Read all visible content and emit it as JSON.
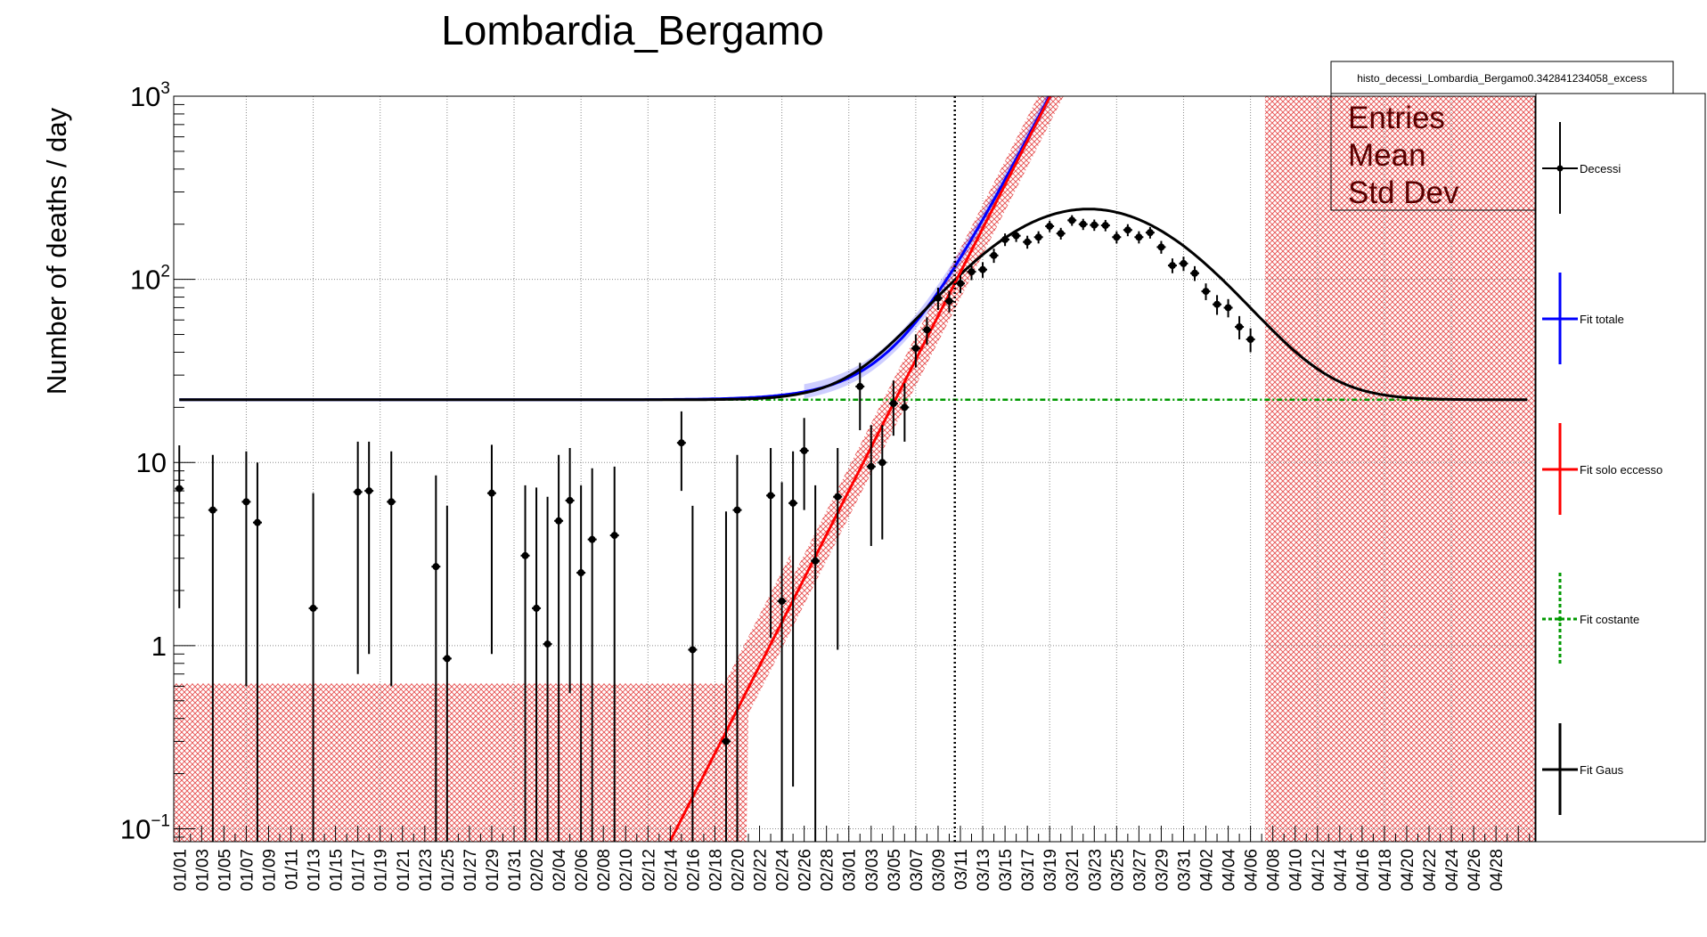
{
  "chart_data": {
    "type": "scatter",
    "title": "Lombardia_Bergamo",
    "ylabel": "Number of deaths / day",
    "xlabel": "",
    "yscale": "log",
    "ylim": [
      0.085,
      1000
    ],
    "xlim_days": [
      0,
      121
    ],
    "grid": true,
    "y_ticks": [
      {
        "value": 0.1,
        "base": "10",
        "exp": "−1"
      },
      {
        "value": 1,
        "base": "1",
        "exp": ""
      },
      {
        "value": 10,
        "base": "10",
        "exp": ""
      },
      {
        "value": 100,
        "base": "10",
        "exp": "2"
      },
      {
        "value": 1000,
        "base": "10",
        "exp": "3"
      }
    ],
    "x_tick_labels": [
      "01/01",
      "01/03",
      "01/05",
      "01/07",
      "01/09",
      "01/11",
      "01/13",
      "01/15",
      "01/17",
      "01/19",
      "01/21",
      "01/23",
      "01/25",
      "01/27",
      "01/29",
      "01/31",
      "02/02",
      "02/04",
      "02/06",
      "02/08",
      "02/10",
      "02/12",
      "02/14",
      "02/16",
      "02/18",
      "02/20",
      "02/22",
      "02/24",
      "02/26",
      "02/28",
      "03/01",
      "03/03",
      "03/05",
      "03/07",
      "03/09",
      "03/11",
      "03/13",
      "03/15",
      "03/17",
      "03/19",
      "03/21",
      "03/23",
      "03/25",
      "03/27",
      "03/29",
      "03/31",
      "04/02",
      "04/04",
      "04/06",
      "04/08",
      "04/10",
      "04/12",
      "04/14",
      "04/16",
      "04/18",
      "04/20",
      "04/22",
      "04/24",
      "04/26",
      "04/28"
    ],
    "vertical_marker_day": 69.5,
    "stats_box": {
      "header": "histo_decessi_Lombardia_Bergamo0.342841234058_excess",
      "rows": [
        "Entries",
        "Mean",
        "Std Dev"
      ]
    },
    "series": [
      {
        "name": "Decessi",
        "kind": "points",
        "color": "#000000",
        "points": [
          [
            0,
            7.2,
            1.6,
            12.4
          ],
          [
            3,
            5.5,
            0.085,
            11
          ],
          [
            6,
            6.1,
            0.6,
            11.5
          ],
          [
            7,
            4.7,
            0.085,
            10
          ],
          [
            12,
            1.6,
            0.085,
            6.8
          ],
          [
            16,
            6.9,
            0.7,
            13
          ],
          [
            17,
            7,
            0.9,
            13
          ],
          [
            19,
            6.1,
            0.6,
            11.5
          ],
          [
            23,
            2.7,
            0.085,
            8.5
          ],
          [
            24,
            0.85,
            0.085,
            5.8
          ],
          [
            28,
            6.8,
            0.9,
            12.5
          ],
          [
            31,
            3.1,
            0.085,
            7.5
          ],
          [
            32,
            1.6,
            0.085,
            7.3
          ],
          [
            33,
            1.02,
            0.085,
            6.5
          ],
          [
            34,
            4.8,
            0.085,
            11
          ],
          [
            35,
            6.2,
            0.55,
            12
          ],
          [
            36,
            2.5,
            0.085,
            7.5
          ],
          [
            37,
            3.8,
            0.085,
            9.3
          ],
          [
            39,
            4,
            0.085,
            9.5
          ],
          [
            45,
            12.8,
            7,
            19
          ],
          [
            46,
            0.95,
            0.085,
            5.8
          ],
          [
            49,
            0.3,
            0.085,
            5.4
          ],
          [
            50,
            5.5,
            0.085,
            11
          ],
          [
            53,
            6.6,
            1.1,
            12
          ],
          [
            54,
            1.75,
            0.085,
            7.8
          ],
          [
            55,
            6,
            0.17,
            11.5
          ],
          [
            56,
            11.6,
            5.5,
            17.5
          ],
          [
            57,
            2.9,
            0.085,
            7.5
          ],
          [
            59,
            6.5,
            0.95,
            12
          ],
          [
            61,
            26,
            15,
            35
          ],
          [
            62,
            9.5,
            3.5,
            16
          ],
          [
            63,
            10,
            3.8,
            16
          ],
          [
            64,
            21,
            14,
            28
          ],
          [
            65,
            20,
            13,
            27
          ],
          [
            66,
            42,
            33,
            50
          ],
          [
            67,
            53,
            44,
            62
          ],
          [
            68,
            79,
            68,
            90
          ],
          [
            69,
            76,
            66,
            86
          ],
          [
            70,
            95,
            84,
            105
          ],
          [
            71,
            110,
            99,
            121
          ],
          [
            72,
            113,
            102,
            124
          ],
          [
            73,
            135,
            123,
            147
          ],
          [
            74,
            165,
            152,
            178
          ],
          [
            75,
            173,
            160,
            186
          ],
          [
            76,
            160,
            147,
            173
          ],
          [
            77,
            170,
            157,
            183
          ],
          [
            78,
            195,
            181,
            209
          ],
          [
            79,
            178,
            165,
            191
          ],
          [
            80,
            210,
            196,
            224
          ],
          [
            81,
            200,
            186,
            214
          ],
          [
            82,
            198,
            184,
            212
          ],
          [
            83,
            197,
            183,
            211
          ],
          [
            84,
            170,
            157,
            183
          ],
          [
            85,
            186,
            172,
            200
          ],
          [
            86,
            170,
            157,
            183
          ],
          [
            87,
            180,
            167,
            193
          ],
          [
            88,
            150,
            138,
            162
          ],
          [
            89,
            119,
            108,
            130
          ],
          [
            90,
            122,
            111,
            133
          ],
          [
            91,
            108,
            98,
            118
          ],
          [
            92,
            86,
            77,
            95
          ],
          [
            93,
            73,
            64,
            82
          ],
          [
            94,
            70,
            62,
            78
          ],
          [
            95,
            55,
            47,
            63
          ],
          [
            96,
            47,
            40,
            54
          ]
        ]
      },
      {
        "name": "Fit totale",
        "kind": "line",
        "color": "#0000ff"
      },
      {
        "name": "Fit solo eccesso",
        "kind": "line",
        "color": "#ff0000"
      },
      {
        "name": "Fit costante",
        "kind": "dashed",
        "color": "#009900",
        "value": 22
      },
      {
        "name": "Fit Gaus",
        "kind": "line",
        "color": "#000000"
      }
    ],
    "fit_params": {
      "constant": 22,
      "gaus": {
        "peak": 220,
        "mean": 81.5,
        "sigma": 8.3
      },
      "exp_ref_day": 64,
      "exp_ref_value": 21,
      "exp_rate": 0.275
    },
    "band_color": "#cc0000"
  }
}
